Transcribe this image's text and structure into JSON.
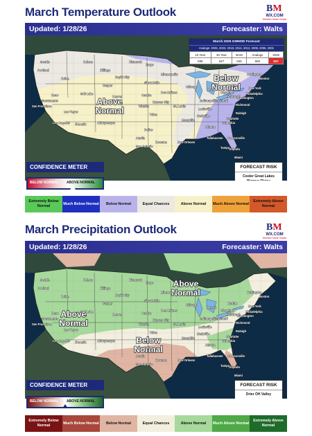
{
  "temperature": {
    "title": "March Temperature Outlook",
    "updated": "Updated: 1/28/26",
    "forecaster": "Forecaster: Walts",
    "logo": {
      "letters_b": "B",
      "letters_m": "M",
      "url": "WX.COM",
      "tagline": "Weather Made Simple"
    },
    "analog_table": {
      "title": "March 2026 GWHDD Forecast",
      "analogs": "Analogs: 2025, 2023, 2018, 2014, 2013, 2009, 2006, 2001",
      "headers": [
        "10 Year",
        "30 Year",
        "BAM",
        "Analogs",
        "2025"
      ],
      "values": [
        "596",
        "627",
        "645",
        "650",
        "527"
      ],
      "highlight_color": "#e52b2b"
    },
    "map_labels": {
      "above": [
        "Above",
        "Normal"
      ],
      "below": [
        "Below",
        "Normal"
      ]
    },
    "cities": [
      "Seattle",
      "Portland",
      "Boise",
      "Helena",
      "Billings",
      "Bismarck",
      "Fargo",
      "Minneapolis",
      "Sioux Falls",
      "Rapid City",
      "Casper",
      "Salt Lake",
      "Reno",
      "Sacramento",
      "San Francisco",
      "Las Vegas",
      "Los Angeles",
      "Phoenix",
      "Albuquerque",
      "Denver",
      "Omaha",
      "Des Moines",
      "Kansas City",
      "Wichita",
      "Tulsa",
      "Dallas",
      "Austin",
      "Houston",
      "San Antonio",
      "New Orleans",
      "Memphis",
      "Nashville",
      "St. Louis",
      "Chicago",
      "Detroit",
      "Indianapolis",
      "Cincinnati",
      "Louisville",
      "Atlanta",
      "Charlotte",
      "Raleigh",
      "Richmond",
      "Washington",
      "Philadelphia",
      "New York",
      "Boston",
      "Burlington",
      "Buffalo",
      "Pittsburgh",
      "Cleveland",
      "Columbia",
      "Tallahassee",
      "Orlando",
      "Tampa",
      "Miami",
      "Jacksonville"
    ],
    "confidence": {
      "title": "CONFIDENCE METER",
      "left": "BELOW NORMAL",
      "right": "ABOVE NORMAL"
    },
    "risk": {
      "title": "FORECAST RISK",
      "text": "Cooler Great Lakes Warmer Plains"
    },
    "legend": [
      {
        "label": "Extremely Below Normal",
        "color": "#59c959",
        "text": "#111111"
      },
      {
        "label": "Much Below Normal",
        "color": "#1f2fbf",
        "text": "#ffffff"
      },
      {
        "label": "Below Normal",
        "color": "#b9b3ec",
        "text": "#111111"
      },
      {
        "label": "Equal Chances",
        "color": "#ece9e3",
        "text": "#111111"
      },
      {
        "label": "Above Normal",
        "color": "#f7f1c9",
        "text": "#111111"
      },
      {
        "label": "Much Above Normal",
        "color": "#f0a23a",
        "text": "#111111"
      },
      {
        "label": "Extremely Above Normal",
        "color": "#d3582a",
        "text": "#111111"
      }
    ]
  },
  "precipitation": {
    "title": "March Precipitation Outlook",
    "updated": "Updated: 1/28/26",
    "forecaster": "Forecaster: Walts",
    "logo": {
      "letters_b": "B",
      "letters_m": "M",
      "url": "WX.COM",
      "tagline": "Weather Made Simple"
    },
    "map_labels": {
      "above_west": [
        "Above",
        "Normal"
      ],
      "above_north": [
        "Above",
        "Normal"
      ],
      "below": [
        "Below",
        "Normal"
      ]
    },
    "cities": [
      "Seattle",
      "Portland",
      "Boise",
      "Helena",
      "Billings",
      "Bismarck",
      "Fargo",
      "Minneapolis",
      "Sioux Falls",
      "Rapid City",
      "Casper",
      "Salt Lake",
      "Reno",
      "Sacramento",
      "San Francisco",
      "Las Vegas",
      "Los Angeles",
      "Phoenix",
      "Albuquerque",
      "Denver",
      "Omaha",
      "Des Moines",
      "Kansas City",
      "Wichita",
      "Tulsa",
      "Dallas",
      "Austin",
      "Houston",
      "San Antonio",
      "New Orleans",
      "Memphis",
      "Nashville",
      "St. Louis",
      "Chicago",
      "Detroit",
      "Indianapolis",
      "Cincinnati",
      "Louisville",
      "Atlanta",
      "Charlotte",
      "Raleigh",
      "Richmond",
      "Washington",
      "Philadelphia",
      "New York",
      "Boston",
      "Burlington",
      "Buffalo",
      "Pittsburgh",
      "Cleveland",
      "Columbia",
      "Tallahassee",
      "Orlando",
      "Tampa",
      "Miami",
      "Jacksonville"
    ],
    "confidence": {
      "title": "CONFIDENCE METER",
      "left": "BELOW NORMAL",
      "right": "ABOVE NORMAL"
    },
    "risk": {
      "title": "FORECAST RISK",
      "text": "Drier OH Valley"
    },
    "legend": [
      {
        "label": "Extremely Below Normal",
        "color": "#7a1414",
        "text": "#ffffff"
      },
      {
        "label": "Much Below Normal",
        "color": "#a8473b",
        "text": "#ffffff"
      },
      {
        "label": "Below Normal",
        "color": "#e0b5a3",
        "text": "#111111"
      },
      {
        "label": "Equal Chances",
        "color": "#f3efdf",
        "text": "#111111"
      },
      {
        "label": "Above Normal",
        "color": "#a6d99b",
        "text": "#111111"
      },
      {
        "label": "Much Above Normal",
        "color": "#4fa946",
        "text": "#ffffff"
      },
      {
        "label": "Extremely Above Normal",
        "color": "#1f6b2a",
        "text": "#ffffff"
      }
    ]
  }
}
